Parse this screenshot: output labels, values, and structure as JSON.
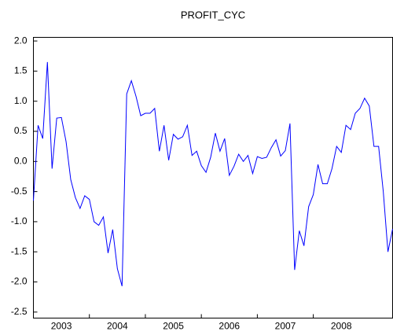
{
  "chart_data": {
    "type": "line",
    "title": "PROFIT_CYC",
    "categories": [
      null,
      null,
      null,
      null,
      null,
      null,
      "2003",
      null,
      null,
      null,
      null,
      null,
      null,
      null,
      null,
      null,
      null,
      null,
      "2004",
      null,
      null,
      null,
      null,
      null,
      null,
      null,
      null,
      null,
      null,
      null,
      "2005",
      null,
      null,
      null,
      null,
      null,
      null,
      null,
      null,
      null,
      null,
      null,
      "2006",
      null,
      null,
      null,
      null,
      null,
      null,
      null,
      null,
      null,
      null,
      null,
      "2007",
      null,
      null,
      null,
      null,
      null,
      null,
      null,
      null,
      null,
      null,
      null,
      "2008",
      null,
      null,
      null,
      null,
      null,
      null,
      null,
      null,
      null,
      null,
      null
    ],
    "series": [
      {
        "name": "PROFIT_CYC",
        "color": "#0000ff",
        "values": [
          -0.65,
          0.6,
          0.38,
          1.65,
          -0.12,
          0.72,
          0.73,
          0.33,
          -0.3,
          -0.6,
          -0.78,
          -0.57,
          -0.63,
          -1.0,
          -1.06,
          -0.92,
          -1.52,
          -1.13,
          -1.78,
          -2.07,
          1.12,
          1.34,
          1.08,
          0.76,
          0.8,
          0.8,
          0.88,
          0.17,
          0.6,
          0.02,
          0.45,
          0.37,
          0.41,
          0.6,
          0.1,
          0.17,
          -0.07,
          -0.18,
          0.07,
          0.47,
          0.17,
          0.38,
          -0.23,
          -0.08,
          0.12,
          0.0,
          0.1,
          -0.2,
          0.08,
          0.05,
          0.07,
          0.23,
          0.36,
          0.09,
          0.18,
          0.63,
          -1.8,
          -1.15,
          -1.4,
          -0.75,
          -0.55,
          -0.05,
          -0.37,
          -0.37,
          -0.12,
          0.25,
          0.15,
          0.6,
          0.53,
          0.8,
          0.88,
          1.05,
          0.92,
          0.25,
          0.25,
          -0.5,
          -1.5,
          -1.12
        ]
      }
    ],
    "ylim": [
      -2.6,
      2.06
    ],
    "yticks": [
      {
        "value": 2,
        "label": "2.0"
      },
      {
        "value": 1.5,
        "label": "1.5"
      },
      {
        "value": 1,
        "label": "1.0"
      },
      {
        "value": 0.5,
        "label": "0.5"
      },
      {
        "value": 0,
        "label": "0.0"
      },
      {
        "value": -0.5,
        "label": "-0.5"
      },
      {
        "value": -1,
        "label": "-1.0"
      },
      {
        "value": -1.5,
        "label": "-1.5"
      },
      {
        "value": -2,
        "label": "-2.0"
      },
      {
        "value": -2.5,
        "label": "-2.5"
      }
    ]
  }
}
